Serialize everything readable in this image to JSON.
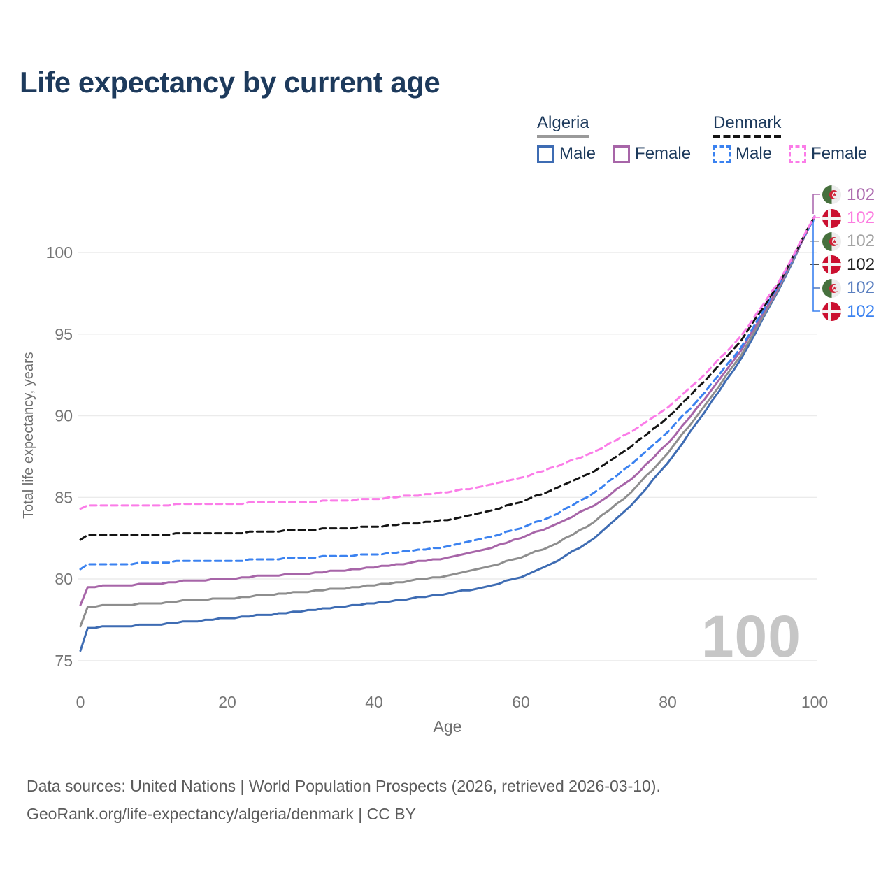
{
  "title": "Life expectancy by current age",
  "legend": {
    "groups": [
      {
        "label": "Algeria",
        "line_style": "solid",
        "underline_color": "#9a9a9a",
        "items": [
          {
            "label": "Male",
            "color": "#3e6cb3"
          },
          {
            "label": "Female",
            "color": "#a765a8"
          }
        ]
      },
      {
        "label": "Denmark",
        "line_style": "dashed",
        "underline_color": "#141414",
        "items": [
          {
            "label": "Male",
            "color": "#3b82f0"
          },
          {
            "label": "Female",
            "color": "#fb7ce8"
          }
        ]
      }
    ]
  },
  "endpoints": [
    {
      "country": "Algeria",
      "flag": "algeria",
      "value": "102",
      "color": "#ad6cb0"
    },
    {
      "country": "Denmark",
      "flag": "denmark",
      "value": "102",
      "color": "#fc7ce0"
    },
    {
      "country": "Algeria",
      "flag": "algeria",
      "value": "102",
      "color": "#a3a3a3"
    },
    {
      "country": "Denmark",
      "flag": "denmark",
      "value": "102",
      "color": "#1f1f1f"
    },
    {
      "country": "Algeria",
      "flag": "algeria",
      "value": "102",
      "color": "#5a7fc0"
    },
    {
      "country": "Denmark",
      "flag": "denmark",
      "value": "102",
      "color": "#3b82f0"
    }
  ],
  "age_indicator": {
    "value": "100"
  },
  "footer": {
    "line1": "Data sources: United Nations | World Population Prospects (2026, retrieved 2026-03-10).",
    "line2": "GeoRank.org/life-expectancy/algeria/denmark | CC BY"
  },
  "chart_data": {
    "type": "line",
    "title": "Life expectancy by current age",
    "xlabel": "Age",
    "ylabel": "Total life expectancy, years",
    "xticks": [
      0,
      20,
      40,
      60,
      80,
      100
    ],
    "yticks": [
      75,
      80,
      85,
      90,
      95,
      100
    ],
    "xlim": [
      0,
      100
    ],
    "ylim": [
      74,
      103
    ],
    "grid": "horizontal",
    "legend_position": "top-right",
    "ages": [
      0,
      1,
      5,
      10,
      15,
      20,
      25,
      30,
      35,
      40,
      45,
      50,
      55,
      60,
      65,
      70,
      75,
      80,
      85,
      90,
      95,
      100
    ],
    "series": [
      {
        "name": "Algeria Male",
        "country": "Algeria",
        "sex": "Male",
        "style": "solid",
        "color": "#3e6cb3",
        "end_label": "102",
        "values": [
          75.6,
          77.0,
          77.1,
          77.2,
          77.4,
          77.6,
          77.8,
          78.0,
          78.3,
          78.5,
          78.8,
          79.1,
          79.5,
          80.1,
          81.1,
          82.5,
          84.5,
          87.1,
          90.2,
          93.5,
          97.6,
          102.2
        ]
      },
      {
        "name": "Algeria Total",
        "country": "Algeria",
        "sex": "Total",
        "style": "solid",
        "color": "#8e8e8e",
        "end_label": "102",
        "values": [
          77.1,
          78.3,
          78.4,
          78.5,
          78.7,
          78.8,
          79.0,
          79.2,
          79.4,
          79.6,
          79.9,
          80.2,
          80.7,
          81.3,
          82.2,
          83.5,
          85.3,
          87.7,
          90.6,
          93.7,
          97.7,
          102.2
        ]
      },
      {
        "name": "Algeria Female",
        "country": "Algeria",
        "sex": "Female",
        "style": "solid",
        "color": "#a765a8",
        "end_label": "102",
        "values": [
          78.4,
          79.5,
          79.6,
          79.7,
          79.9,
          80.0,
          80.2,
          80.3,
          80.5,
          80.7,
          81.0,
          81.3,
          81.8,
          82.5,
          83.4,
          84.5,
          86.1,
          88.3,
          91.0,
          94.0,
          97.8,
          102.2
        ]
      },
      {
        "name": "Denmark Male",
        "country": "Denmark",
        "sex": "Male",
        "style": "dashed",
        "color": "#3b82f0",
        "end_label": "102",
        "values": [
          80.6,
          80.9,
          80.9,
          81.0,
          81.1,
          81.1,
          81.2,
          81.3,
          81.4,
          81.5,
          81.7,
          82.0,
          82.5,
          83.1,
          84.0,
          85.3,
          87.0,
          89.0,
          91.4,
          94.2,
          97.9,
          102.2
        ]
      },
      {
        "name": "Denmark Total",
        "country": "Denmark",
        "sex": "Total",
        "style": "dashed",
        "color": "#141414",
        "end_label": "102",
        "values": [
          82.4,
          82.7,
          82.7,
          82.7,
          82.8,
          82.8,
          82.9,
          83.0,
          83.1,
          83.2,
          83.4,
          83.6,
          84.1,
          84.7,
          85.6,
          86.6,
          88.1,
          89.9,
          92.1,
          94.6,
          98.0,
          102.2
        ]
      },
      {
        "name": "Denmark Female",
        "country": "Denmark",
        "sex": "Female",
        "style": "dashed",
        "color": "#fb7ce8",
        "end_label": "102",
        "values": [
          84.3,
          84.5,
          84.5,
          84.5,
          84.6,
          84.6,
          84.7,
          84.7,
          84.8,
          84.9,
          85.1,
          85.3,
          85.7,
          86.2,
          86.9,
          87.8,
          89.0,
          90.5,
          92.5,
          94.9,
          98.1,
          102.2
        ]
      }
    ]
  }
}
